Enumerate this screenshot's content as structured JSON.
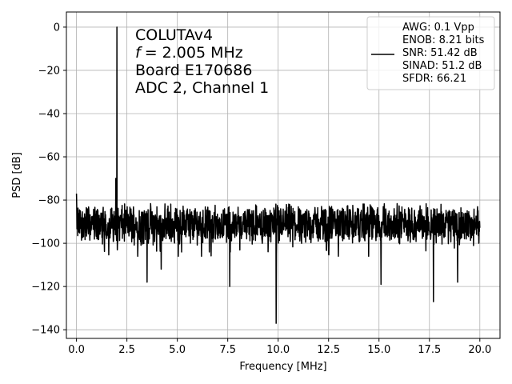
{
  "chart_data": {
    "type": "line",
    "xlabel": "Frequency [MHz]",
    "ylabel": "PSD [dB]",
    "xlim": [
      -0.5,
      21.0
    ],
    "ylim": [
      -144,
      7
    ],
    "xticks": [
      0.0,
      2.5,
      5.0,
      7.5,
      10.0,
      12.5,
      15.0,
      17.5,
      20.0
    ],
    "xtick_labels": [
      "0.0",
      "2.5",
      "5.0",
      "7.5",
      "10.0",
      "12.5",
      "15.0",
      "17.5",
      "20.0"
    ],
    "yticks": [
      0,
      -20,
      -40,
      -60,
      -80,
      -100,
      -120,
      -140
    ],
    "ytick_labels": [
      "0",
      "−20",
      "−40",
      "−60",
      "−80",
      "−100",
      "−120",
      "−140"
    ],
    "grid": true,
    "line_color": "#000000",
    "annotation_lines": [
      "COLUTAv4",
      "= 2.005 MHz",
      "Board E170686",
      "ADC 2, Channel 1"
    ],
    "annotation_italic_symbol": "f",
    "legend_position": "top-right",
    "legend_lines": [
      "AWG: 0.1 Vpp",
      "ENOB: 8.21 bits",
      "SNR: 51.42 dB",
      "SINAD: 51.2 dB",
      "SFDR: 66.21"
    ],
    "series": [
      {
        "peak": {
          "x": 2.005,
          "y": 0
        },
        "noise_floor_mean": -91,
        "noise_floor_range": [
          -104,
          -79
        ],
        "x_range": [
          0.0,
          20.0
        ],
        "notable_points": [
          {
            "x": 0.0,
            "y": -77
          },
          {
            "x": 1.95,
            "y": -70
          },
          {
            "x": 3.5,
            "y": -118
          },
          {
            "x": 4.2,
            "y": -112
          },
          {
            "x": 7.6,
            "y": -120
          },
          {
            "x": 9.9,
            "y": -137
          },
          {
            "x": 15.1,
            "y": -119
          },
          {
            "x": 17.7,
            "y": -127
          },
          {
            "x": 18.9,
            "y": -118
          }
        ]
      }
    ]
  }
}
